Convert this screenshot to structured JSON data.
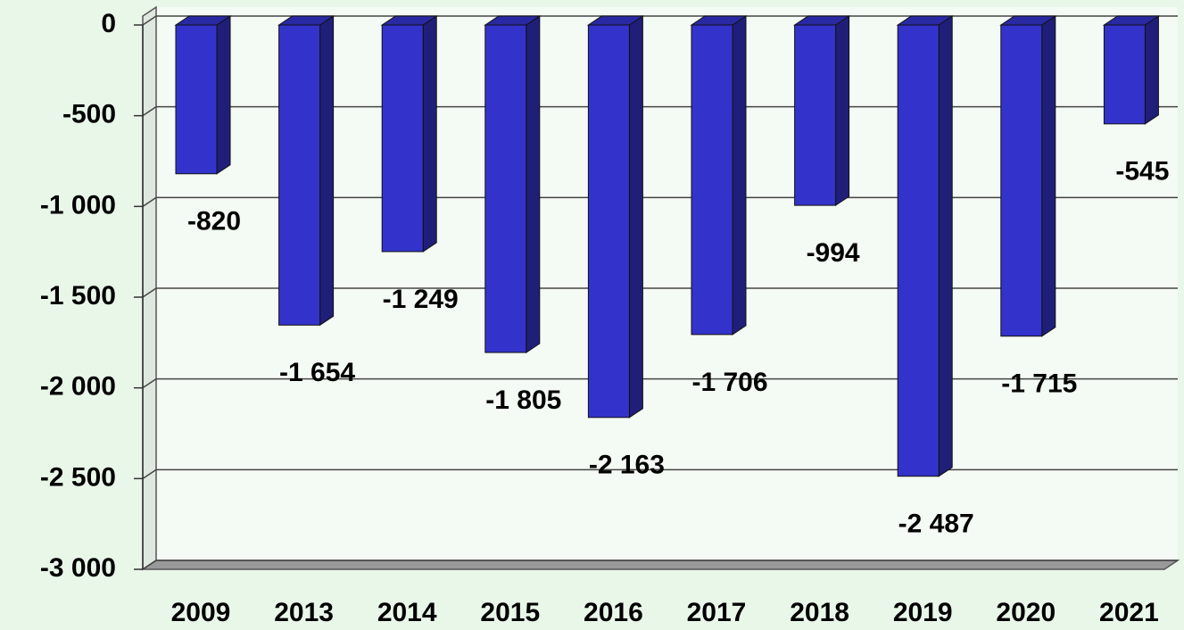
{
  "chart_data": {
    "type": "bar3d",
    "categories": [
      "2009",
      "2013",
      "2014",
      "2015",
      "2016",
      "2017",
      "2018",
      "2019",
      "2020",
      "2021"
    ],
    "values": [
      -820,
      -1654,
      -1249,
      -1805,
      -2163,
      -1706,
      -994,
      -2487,
      -1715,
      -545
    ],
    "value_labels": [
      "-820",
      "-1 654",
      "-1 249",
      "-1 805",
      "-2 163",
      "-1 706",
      "-994",
      "-2 487",
      "-1 715",
      "-545"
    ],
    "color": "#3333cc",
    "ylim": [
      -3000,
      0
    ],
    "yticks": [
      0,
      -500,
      {
        "value": -1000,
        "label": "-1 000"
      },
      {
        "value": -1500,
        "label": "-1 500"
      },
      {
        "value": -2000,
        "label": "-2 000"
      },
      {
        "value": -2500,
        "label": "-2 500"
      },
      {
        "value": -3000,
        "label": "-3 000"
      }
    ],
    "grid": true
  }
}
